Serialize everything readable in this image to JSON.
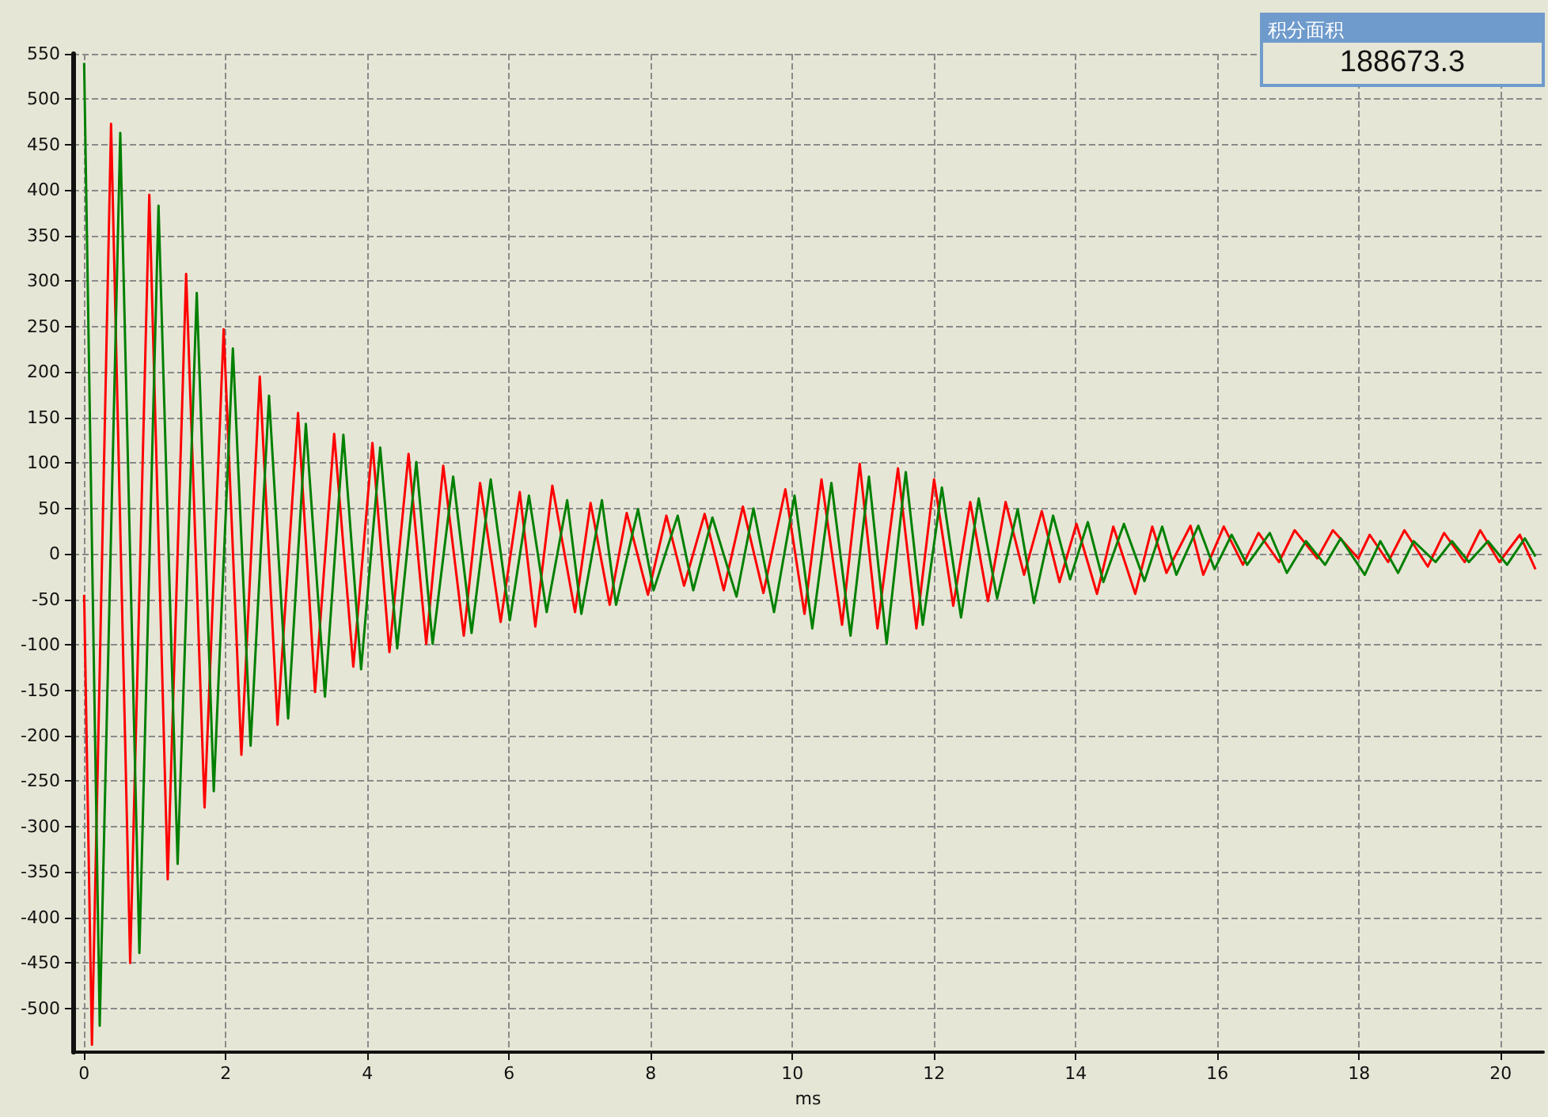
{
  "chart_data": {
    "type": "line",
    "xlabel": "ms",
    "annotations": [
      "积分面积",
      "188673.3"
    ],
    "xlim": [
      -0.16,
      20.6
    ],
    "xticks": [
      0,
      2,
      4,
      6,
      8,
      10,
      12,
      14,
      16,
      18,
      20
    ],
    "ylim": [
      -548,
      550
    ],
    "yticks": [
      -500,
      -450,
      -400,
      -350,
      -300,
      -250,
      -200,
      -150,
      -100,
      -50,
      0,
      50,
      100,
      150,
      200,
      250,
      300,
      350,
      400,
      450,
      500,
      550
    ],
    "grid": true,
    "marker": "none",
    "line_style": "solid",
    "series": [
      {
        "color": "#ff0000",
        "x": [
          0.0,
          0.11,
          0.38,
          0.65,
          0.92,
          1.18,
          1.44,
          1.7,
          1.97,
          2.22,
          2.48,
          2.73,
          3.02,
          3.26,
          3.53,
          3.8,
          4.07,
          4.31,
          4.58,
          4.83,
          5.07,
          5.36,
          5.59,
          5.88,
          6.15,
          6.37,
          6.61,
          6.93,
          7.15,
          7.42,
          7.66,
          7.96,
          8.22,
          8.47,
          8.76,
          9.03,
          9.3,
          9.59,
          9.9,
          10.17,
          10.41,
          10.7,
          10.95,
          11.2,
          11.49,
          11.75,
          12.0,
          12.27,
          12.51,
          12.76,
          13.01,
          13.27,
          13.52,
          13.77,
          14.01,
          14.3,
          14.53,
          14.84,
          15.08,
          15.28,
          15.62,
          15.8,
          16.09,
          16.36,
          16.58,
          16.87,
          17.09,
          17.41,
          17.63,
          17.99,
          18.15,
          18.41,
          18.64,
          18.97,
          19.2,
          19.49,
          19.71,
          19.98,
          20.27,
          20.49
        ],
        "values": [
          -45,
          -540,
          473,
          -450,
          395,
          -358,
          308,
          -279,
          247,
          -221,
          195,
          -188,
          155,
          -152,
          132,
          -124,
          122,
          -108,
          110,
          -99,
          97,
          -90,
          78,
          -75,
          68,
          -80,
          75,
          -64,
          56,
          -56,
          45,
          -45,
          42,
          -35,
          44,
          -40,
          52,
          -43,
          71,
          -66,
          82,
          -78,
          99,
          -82,
          94,
          -82,
          82,
          -57,
          57,
          -52,
          57,
          -23,
          47,
          -31,
          33,
          -44,
          30,
          -44,
          30,
          -21,
          31,
          -23,
          30,
          -12,
          23,
          -9,
          26,
          -5,
          26,
          -5,
          21,
          -9,
          26,
          -14,
          23,
          -9,
          26,
          -9,
          21,
          -17
        ]
      },
      {
        "color": "#008000",
        "x": [
          0.0,
          0.22,
          0.51,
          0.78,
          1.05,
          1.32,
          1.59,
          1.83,
          2.1,
          2.35,
          2.61,
          2.88,
          3.13,
          3.4,
          3.66,
          3.91,
          4.18,
          4.42,
          4.69,
          4.92,
          5.21,
          5.47,
          5.74,
          6.01,
          6.28,
          6.53,
          6.82,
          7.02,
          7.31,
          7.51,
          7.82,
          8.04,
          8.38,
          8.6,
          8.87,
          9.21,
          9.45,
          9.74,
          10.03,
          10.28,
          10.55,
          10.82,
          11.08,
          11.33,
          11.6,
          11.84,
          12.11,
          12.38,
          12.63,
          12.89,
          13.18,
          13.41,
          13.68,
          13.92,
          14.17,
          14.39,
          14.68,
          14.97,
          15.22,
          15.42,
          15.73,
          15.96,
          16.2,
          16.42,
          16.74,
          16.98,
          17.25,
          17.52,
          17.74,
          18.08,
          18.3,
          18.55,
          18.77,
          19.08,
          19.31,
          19.55,
          19.82,
          20.09,
          20.34,
          20.49
        ],
        "values": [
          540,
          -519,
          463,
          -439,
          383,
          -341,
          287,
          -261,
          226,
          -211,
          174,
          -181,
          143,
          -157,
          131,
          -127,
          117,
          -104,
          101,
          -99,
          85,
          -87,
          82,
          -73,
          64,
          -64,
          59,
          -66,
          59,
          -56,
          49,
          -40,
          42,
          -40,
          40,
          -47,
          50,
          -64,
          64,
          -82,
          78,
          -90,
          85,
          -99,
          90,
          -78,
          73,
          -70,
          61,
          -49,
          49,
          -54,
          42,
          -28,
          35,
          -31,
          33,
          -30,
          30,
          -23,
          31,
          -17,
          21,
          -12,
          23,
          -21,
          14,
          -12,
          17,
          -23,
          14,
          -21,
          14,
          -9,
          14,
          -9,
          14,
          -12,
          17,
          -3
        ]
      }
    ]
  }
}
